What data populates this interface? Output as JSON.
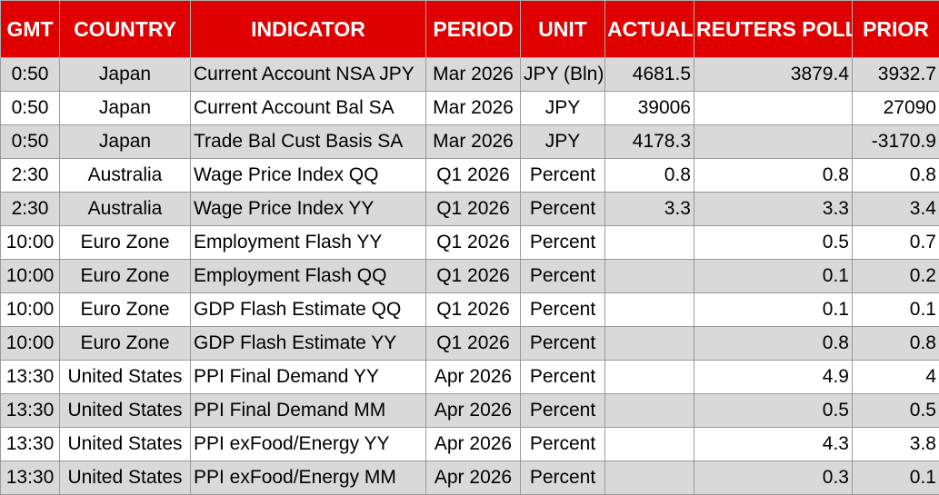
{
  "header": {
    "gmt": "GMT",
    "country": "COUNTRY",
    "indicator": "INDICATOR",
    "period": "PERIOD",
    "unit": "UNIT",
    "actual": "ACTUAL",
    "poll": "REUTERS POLL",
    "prior": "PRIOR"
  },
  "rows": [
    {
      "gmt": "0:50",
      "country": "Japan",
      "indicator": "Current Account NSA JPY",
      "period": "Mar 2026",
      "unit": "JPY (Bln)",
      "actual": "4681.5",
      "poll": "3879.4",
      "prior": "3932.7"
    },
    {
      "gmt": "0:50",
      "country": "Japan",
      "indicator": "Current Account Bal SA",
      "period": "Mar 2026",
      "unit": "JPY",
      "actual": "39006",
      "poll": "",
      "prior": "27090"
    },
    {
      "gmt": "0:50",
      "country": "Japan",
      "indicator": "Trade Bal Cust Basis SA",
      "period": "Mar 2026",
      "unit": "JPY",
      "actual": "4178.3",
      "poll": "",
      "prior": "-3170.9"
    },
    {
      "gmt": "2:30",
      "country": "Australia",
      "indicator": "Wage Price Index QQ",
      "period": "Q1 2026",
      "unit": "Percent",
      "actual": "0.8",
      "poll": "0.8",
      "prior": "0.8"
    },
    {
      "gmt": "2:30",
      "country": "Australia",
      "indicator": "Wage Price Index YY",
      "period": "Q1 2026",
      "unit": "Percent",
      "actual": "3.3",
      "poll": "3.3",
      "prior": "3.4"
    },
    {
      "gmt": "10:00",
      "country": "Euro Zone",
      "indicator": "Employment Flash YY",
      "period": "Q1 2026",
      "unit": "Percent",
      "actual": "",
      "poll": "0.5",
      "prior": "0.7"
    },
    {
      "gmt": "10:00",
      "country": "Euro Zone",
      "indicator": "Employment Flash QQ",
      "period": "Q1 2026",
      "unit": "Percent",
      "actual": "",
      "poll": "0.1",
      "prior": "0.2"
    },
    {
      "gmt": "10:00",
      "country": "Euro Zone",
      "indicator": "GDP Flash Estimate QQ",
      "period": "Q1 2026",
      "unit": "Percent",
      "actual": "",
      "poll": "0.1",
      "prior": "0.1"
    },
    {
      "gmt": "10:00",
      "country": "Euro Zone",
      "indicator": "GDP Flash Estimate YY",
      "period": "Q1 2026",
      "unit": "Percent",
      "actual": "",
      "poll": "0.8",
      "prior": "0.8"
    },
    {
      "gmt": "13:30",
      "country": "United States",
      "indicator": "PPI Final Demand YY",
      "period": "Apr 2026",
      "unit": "Percent",
      "actual": "",
      "poll": "4.9",
      "prior": "4"
    },
    {
      "gmt": "13:30",
      "country": "United States",
      "indicator": "PPI Final Demand MM",
      "period": "Apr 2026",
      "unit": "Percent",
      "actual": "",
      "poll": "0.5",
      "prior": "0.5"
    },
    {
      "gmt": "13:30",
      "country": "United States",
      "indicator": "PPI exFood/Energy YY",
      "period": "Apr 2026",
      "unit": "Percent",
      "actual": "",
      "poll": "4.3",
      "prior": "3.8"
    },
    {
      "gmt": "13:30",
      "country": "United States",
      "indicator": "PPI exFood/Energy MM",
      "period": "Apr 2026",
      "unit": "Percent",
      "actual": "",
      "poll": "0.3",
      "prior": "0.1"
    }
  ],
  "colors": {
    "header_bg": "#e00000",
    "header_text": "#ffffff",
    "row_shade": "#d9d9d9",
    "row_plain": "#ffffff"
  }
}
